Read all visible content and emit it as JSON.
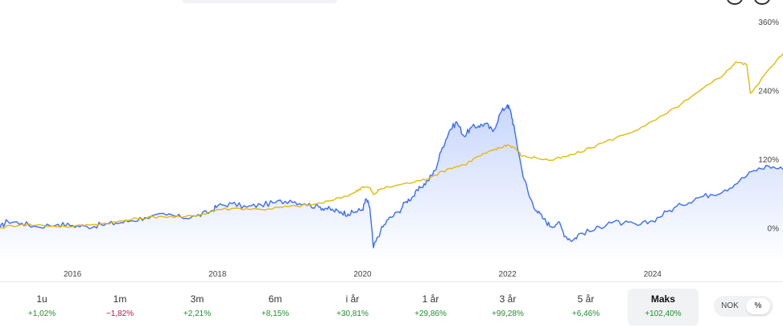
{
  "chart_data": {
    "type": "line",
    "ylim": [
      -60,
      370
    ],
    "xlim": [
      2015.0,
      2025.8
    ],
    "y_ticks": [
      {
        "value": 0,
        "label": "0%"
      },
      {
        "value": 120,
        "label": "120%"
      },
      {
        "value": 240,
        "label": "240%"
      },
      {
        "value": 360,
        "label": "360%"
      }
    ],
    "x_ticks": [
      {
        "value": 2016,
        "label": "2016"
      },
      {
        "value": 2018,
        "label": "2018"
      },
      {
        "value": 2020,
        "label": "2020"
      },
      {
        "value": 2022,
        "label": "2022"
      },
      {
        "value": 2024,
        "label": "2024"
      }
    ],
    "series": [
      {
        "color": "#3b6ef5",
        "fill": true,
        "points": [
          [
            2015.0,
            0
          ],
          [
            2015.1,
            12
          ],
          [
            2015.3,
            8
          ],
          [
            2015.5,
            2
          ],
          [
            2015.8,
            6
          ],
          [
            2016.0,
            4
          ],
          [
            2016.2,
            2
          ],
          [
            2016.4,
            5
          ],
          [
            2016.6,
            8
          ],
          [
            2016.8,
            12
          ],
          [
            2017.0,
            18
          ],
          [
            2017.3,
            22
          ],
          [
            2017.5,
            18
          ],
          [
            2017.7,
            20
          ],
          [
            2017.9,
            28
          ],
          [
            2018.0,
            38
          ],
          [
            2018.2,
            42
          ],
          [
            2018.4,
            36
          ],
          [
            2018.6,
            40
          ],
          [
            2018.8,
            44
          ],
          [
            2019.0,
            48
          ],
          [
            2019.2,
            42
          ],
          [
            2019.4,
            36
          ],
          [
            2019.5,
            34
          ],
          [
            2019.6,
            30
          ],
          [
            2019.7,
            28
          ],
          [
            2019.8,
            24
          ],
          [
            2019.9,
            28
          ],
          [
            2020.0,
            32
          ],
          [
            2020.05,
            50
          ],
          [
            2020.1,
            36
          ],
          [
            2020.15,
            -35
          ],
          [
            2020.25,
            -5
          ],
          [
            2020.35,
            14
          ],
          [
            2020.5,
            28
          ],
          [
            2020.6,
            46
          ],
          [
            2020.7,
            55
          ],
          [
            2020.8,
            70
          ],
          [
            2020.9,
            82
          ],
          [
            2021.0,
            100
          ],
          [
            2021.1,
            140
          ],
          [
            2021.2,
            170
          ],
          [
            2021.3,
            185
          ],
          [
            2021.4,
            160
          ],
          [
            2021.5,
            175
          ],
          [
            2021.6,
            178
          ],
          [
            2021.7,
            182
          ],
          [
            2021.8,
            168
          ],
          [
            2021.9,
            200
          ],
          [
            2022.0,
            215
          ],
          [
            2022.05,
            200
          ],
          [
            2022.1,
            168
          ],
          [
            2022.2,
            100
          ],
          [
            2022.3,
            55
          ],
          [
            2022.4,
            30
          ],
          [
            2022.5,
            15
          ],
          [
            2022.6,
            2
          ],
          [
            2022.7,
            10
          ],
          [
            2022.8,
            -15
          ],
          [
            2022.9,
            -22
          ],
          [
            2023.0,
            -10
          ],
          [
            2023.2,
            -4
          ],
          [
            2023.4,
            10
          ],
          [
            2023.6,
            8
          ],
          [
            2023.8,
            4
          ],
          [
            2024.0,
            12
          ],
          [
            2024.2,
            28
          ],
          [
            2024.4,
            40
          ],
          [
            2024.6,
            52
          ],
          [
            2024.8,
            58
          ],
          [
            2025.0,
            66
          ],
          [
            2025.2,
            82
          ],
          [
            2025.4,
            100
          ],
          [
            2025.6,
            108
          ],
          [
            2025.8,
            102
          ]
        ]
      },
      {
        "color": "#e3b90c",
        "fill": false,
        "points": [
          [
            2015.0,
            0
          ],
          [
            2015.3,
            6
          ],
          [
            2015.6,
            4
          ],
          [
            2016.0,
            2
          ],
          [
            2016.3,
            6
          ],
          [
            2016.6,
            10
          ],
          [
            2016.9,
            16
          ],
          [
            2017.2,
            20
          ],
          [
            2017.5,
            18
          ],
          [
            2017.8,
            24
          ],
          [
            2018.0,
            32
          ],
          [
            2018.3,
            34
          ],
          [
            2018.6,
            32
          ],
          [
            2018.9,
            36
          ],
          [
            2019.1,
            38
          ],
          [
            2019.3,
            40
          ],
          [
            2019.6,
            48
          ],
          [
            2019.9,
            62
          ],
          [
            2020.0,
            72
          ],
          [
            2020.1,
            70
          ],
          [
            2020.15,
            58
          ],
          [
            2020.25,
            68
          ],
          [
            2020.5,
            75
          ],
          [
            2020.8,
            82
          ],
          [
            2021.0,
            92
          ],
          [
            2021.2,
            104
          ],
          [
            2021.4,
            110
          ],
          [
            2021.6,
            125
          ],
          [
            2021.8,
            135
          ],
          [
            2021.9,
            140
          ],
          [
            2022.0,
            145
          ],
          [
            2022.1,
            140
          ],
          [
            2022.2,
            125
          ],
          [
            2022.4,
            122
          ],
          [
            2022.6,
            118
          ],
          [
            2022.8,
            124
          ],
          [
            2023.0,
            132
          ],
          [
            2023.3,
            148
          ],
          [
            2023.6,
            162
          ],
          [
            2023.9,
            178
          ],
          [
            2024.2,
            200
          ],
          [
            2024.5,
            225
          ],
          [
            2024.8,
            252
          ],
          [
            2025.0,
            270
          ],
          [
            2025.15,
            290
          ],
          [
            2025.3,
            285
          ],
          [
            2025.35,
            235
          ],
          [
            2025.5,
            260
          ],
          [
            2025.7,
            290
          ],
          [
            2025.8,
            305
          ]
        ]
      }
    ]
  },
  "periods": [
    {
      "label": "1u",
      "value": "+1,02%",
      "trend": "pos",
      "active": false
    },
    {
      "label": "1m",
      "value": "−1,82%",
      "trend": "neg",
      "active": false
    },
    {
      "label": "3m",
      "value": "+2,21%",
      "trend": "pos",
      "active": false
    },
    {
      "label": "6m",
      "value": "+8,15%",
      "trend": "pos",
      "active": false
    },
    {
      "label": "i år",
      "value": "+30,81%",
      "trend": "pos",
      "active": false
    },
    {
      "label": "1 år",
      "value": "+29,86%",
      "trend": "pos",
      "active": false
    },
    {
      "label": "3 år",
      "value": "+99,28%",
      "trend": "pos",
      "active": false
    },
    {
      "label": "5 år",
      "value": "+6,46%",
      "trend": "pos",
      "active": false
    },
    {
      "label": "Maks",
      "value": "+102,40%",
      "trend": "pos",
      "active": true
    }
  ],
  "toggle": {
    "nok_label": "NOK",
    "pct_label": "%",
    "selected": "%"
  }
}
